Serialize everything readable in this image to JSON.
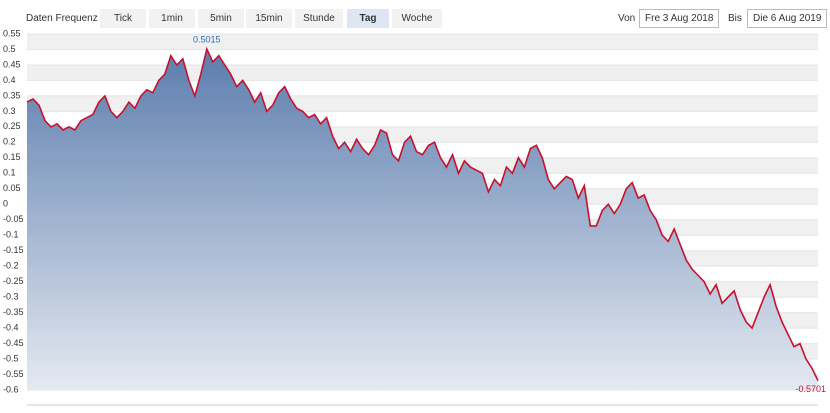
{
  "toolbar": {
    "frequency_label": "Daten Frequenz",
    "buttons": [
      "Tick",
      "1min",
      "5min",
      "15min",
      "Stunde",
      "Tag",
      "Woche"
    ],
    "active_index": 5,
    "from_label": "Von",
    "from_date": "Fre 3 Aug 2018",
    "to_label": "Bis",
    "to_date": "Die 6 Aug 2019"
  },
  "chart_data": {
    "type": "area",
    "line_color": "#c8102e",
    "fill_top": "#4a6fa5",
    "fill_bottom": "#e3e8f1",
    "grid": true,
    "ylim": [
      -0.6,
      0.55
    ],
    "yticks": [
      0.55,
      0.5,
      0.45,
      0.4,
      0.35,
      0.3,
      0.25,
      0.2,
      0.15,
      0.1,
      0.05,
      0,
      -0.05,
      -0.1,
      -0.15,
      -0.2,
      -0.25,
      -0.3,
      -0.35,
      -0.4,
      -0.45,
      -0.5,
      -0.55,
      -0.6
    ],
    "values": [
      0.33,
      0.34,
      0.32,
      0.27,
      0.25,
      0.26,
      0.24,
      0.25,
      0.24,
      0.27,
      0.28,
      0.29,
      0.33,
      0.35,
      0.3,
      0.28,
      0.3,
      0.33,
      0.31,
      0.35,
      0.37,
      0.36,
      0.4,
      0.42,
      0.48,
      0.45,
      0.47,
      0.4,
      0.35,
      0.42,
      0.5015,
      0.46,
      0.48,
      0.45,
      0.42,
      0.38,
      0.4,
      0.37,
      0.33,
      0.36,
      0.3,
      0.32,
      0.36,
      0.38,
      0.34,
      0.31,
      0.3,
      0.28,
      0.29,
      0.26,
      0.28,
      0.22,
      0.18,
      0.2,
      0.17,
      0.21,
      0.18,
      0.16,
      0.19,
      0.24,
      0.23,
      0.16,
      0.14,
      0.2,
      0.22,
      0.17,
      0.16,
      0.19,
      0.2,
      0.15,
      0.12,
      0.16,
      0.1,
      0.14,
      0.12,
      0.11,
      0.1,
      0.04,
      0.08,
      0.06,
      0.12,
      0.1,
      0.15,
      0.12,
      0.18,
      0.19,
      0.15,
      0.08,
      0.05,
      0.07,
      0.09,
      0.08,
      0.02,
      0.06,
      -0.07,
      -0.07,
      -0.02,
      0.0,
      -0.03,
      0.0,
      0.05,
      0.07,
      0.02,
      0.03,
      -0.02,
      -0.05,
      -0.1,
      -0.12,
      -0.08,
      -0.13,
      -0.18,
      -0.21,
      -0.23,
      -0.25,
      -0.29,
      -0.26,
      -0.32,
      -0.3,
      -0.28,
      -0.34,
      -0.38,
      -0.4,
      -0.35,
      -0.3,
      -0.26,
      -0.33,
      -0.38,
      -0.42,
      -0.46,
      -0.45,
      -0.5,
      -0.53,
      -0.5701
    ]
  }
}
